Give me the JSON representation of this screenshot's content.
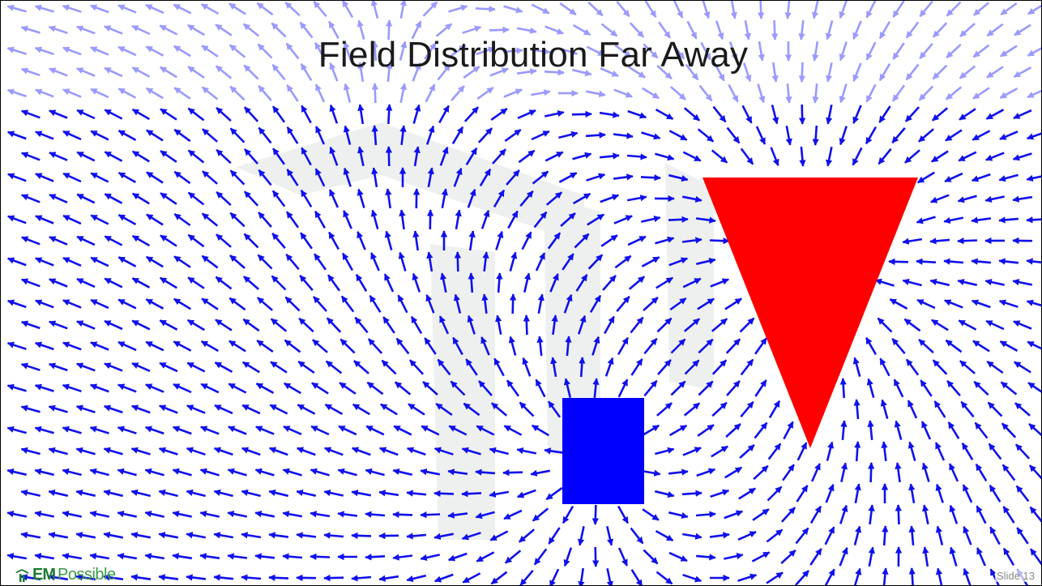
{
  "slide": {
    "title": "Field Distribution Far Away",
    "slide_number": "Slide 13"
  },
  "logo": {
    "text_em": "EM",
    "text_rest": "Possible",
    "colors": {
      "primary": "#1e7a34",
      "secondary": "#3a9a4a"
    }
  },
  "figure": {
    "arrow_color": "#1010ee",
    "faded_arrow_color": "#9a9aff",
    "positive_charge_color": "#0000ff",
    "negative_charge_color": "#ff0000",
    "watermark_color": "#eef0f0"
  }
}
